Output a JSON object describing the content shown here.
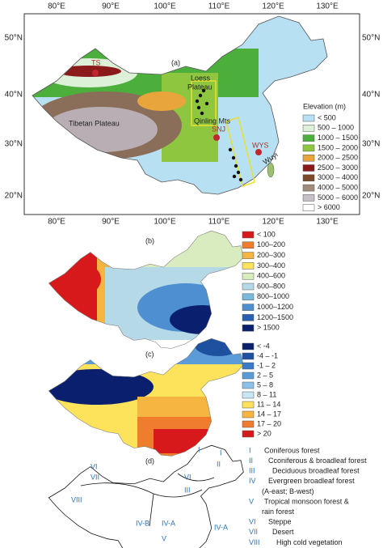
{
  "panel_a": {
    "label": "(a)",
    "lon_labels": [
      "80°E",
      "90°E",
      "100°E",
      "110°E",
      "120°E",
      "130°E"
    ],
    "lat_labels": [
      "50°N",
      "40°N",
      "30°N",
      "20°N"
    ],
    "places": {
      "ts": "TS",
      "loess_1": "Loess",
      "loess_2": "Plateau",
      "tibet": "Tibetan Plateau",
      "qinling": "Qinling Mts",
      "snj": "SNJ",
      "wys": "WYS",
      "wuyi": "Wuyi"
    },
    "legend": {
      "title": "Elevation (m)",
      "items": [
        "< 500",
        "500 – 1000",
        "1000 – 1500",
        "1500 – 2000",
        "2000 – 2500",
        "2500 – 3000",
        "3000 – 4000",
        "4000 – 5000",
        "5000 – 6000",
        "> 6000"
      ]
    }
  },
  "panel_b": {
    "label": "(b)",
    "legend": [
      "< 100",
      "100–200",
      "200–300",
      "300–400",
      "400–600",
      "600–800",
      "800–1000",
      "1000–1200",
      "1200–1500",
      "> 1500"
    ]
  },
  "panel_c": {
    "label": "(c)",
    "legend": [
      "< -4",
      "-4 – -1",
      "-1 – 2",
      "2 – 5",
      "5 – 8",
      "8 – 11",
      "11 – 14",
      "14 – 17",
      "17 – 20",
      "> 20"
    ]
  },
  "panel_d": {
    "label": "(d)",
    "regions": [
      "VI",
      "VII",
      "VIII",
      "IV-B",
      "IV-A",
      "V",
      "IV-A",
      "I",
      "II",
      "VI",
      "III",
      "I"
    ],
    "legend": [
      {
        "numeral": "I",
        "lines": [
          "Coniferous forest"
        ]
      },
      {
        "numeral": "II",
        "lines": [
          "Cconiferous & broadleaf forest"
        ]
      },
      {
        "numeral": "III",
        "lines": [
          "Deciduous broadleaf forest"
        ]
      },
      {
        "numeral": "IV",
        "lines": [
          "Evergreen broadleaf forest",
          "(A-east; B-west)"
        ]
      },
      {
        "numeral": "V",
        "lines": [
          "Tropical monsoon forest &",
          "rain forest"
        ]
      },
      {
        "numeral": "VI",
        "lines": [
          "Steppe"
        ]
      },
      {
        "numeral": "VII",
        "lines": [
          "Desert"
        ]
      },
      {
        "numeral": "VIII",
        "lines": [
          "High cold vegetation"
        ]
      }
    ]
  }
}
